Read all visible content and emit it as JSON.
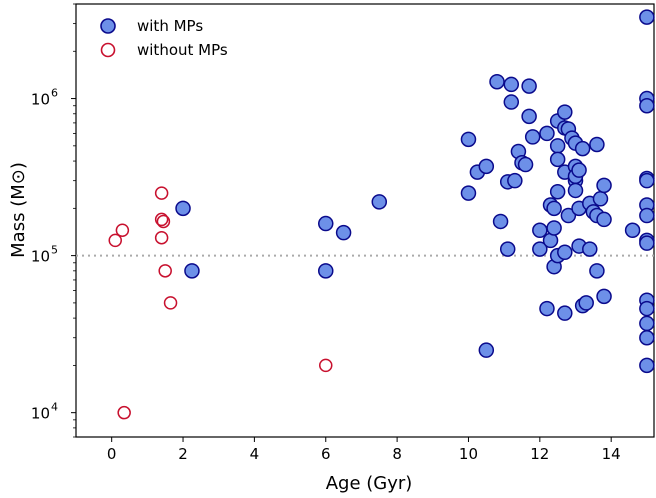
{
  "chart_data": {
    "type": "scatter",
    "xlabel": "Age (Gyr)",
    "ylabel": "Mass (M⊙)",
    "xlim": [
      -1,
      15.2
    ],
    "ylim": [
      7000,
      4000000
    ],
    "y_scale": "log",
    "x_ticks": [
      0,
      2,
      4,
      6,
      8,
      10,
      12,
      14
    ],
    "x_tick_labels": [
      "0",
      "2",
      "4",
      "6",
      "8",
      "10",
      "12",
      "14"
    ],
    "y_ticks": [
      10000,
      100000,
      1000000
    ],
    "y_tick_labels": [
      {
        "base": "10",
        "exp": "4"
      },
      {
        "base": "10",
        "exp": "5"
      },
      {
        "base": "10",
        "exp": "6"
      }
    ],
    "reference_line": {
      "y": 100000,
      "style": "dotted",
      "color": "#aaaaaa"
    },
    "legend_position": "top-left",
    "series": [
      {
        "name": "with MPs",
        "marker": "filled-circle",
        "fill": "#6d90e8",
        "edge": "#0a0a8c",
        "points": [
          [
            2.0,
            200000
          ],
          [
            2.25,
            80000
          ],
          [
            6.0,
            160000
          ],
          [
            6.0,
            80000
          ],
          [
            6.5,
            140000
          ],
          [
            7.5,
            220000
          ],
          [
            10.0,
            550000
          ],
          [
            10.0,
            250000
          ],
          [
            10.5,
            25000
          ],
          [
            10.25,
            340000
          ],
          [
            10.5,
            370000
          ],
          [
            10.8,
            1280000
          ],
          [
            11.2,
            1230000
          ],
          [
            11.2,
            950000
          ],
          [
            10.9,
            165000
          ],
          [
            11.1,
            110000
          ],
          [
            11.1,
            295000
          ],
          [
            11.3,
            300000
          ],
          [
            11.4,
            460000
          ],
          [
            11.5,
            390000
          ],
          [
            11.6,
            380000
          ],
          [
            11.7,
            1200000
          ],
          [
            11.7,
            770000
          ],
          [
            11.8,
            570000
          ],
          [
            12.0,
            145000
          ],
          [
            12.0,
            110000
          ],
          [
            12.2,
            600000
          ],
          [
            12.2,
            46000
          ],
          [
            12.3,
            210000
          ],
          [
            12.3,
            125000
          ],
          [
            12.4,
            200000
          ],
          [
            12.4,
            150000
          ],
          [
            12.4,
            85000
          ],
          [
            12.5,
            720000
          ],
          [
            12.5,
            500000
          ],
          [
            12.5,
            410000
          ],
          [
            12.5,
            255000
          ],
          [
            12.5,
            100000
          ],
          [
            12.7,
            820000
          ],
          [
            12.7,
            650000
          ],
          [
            12.7,
            340000
          ],
          [
            12.7,
            105000
          ],
          [
            12.7,
            43000
          ],
          [
            12.8,
            640000
          ],
          [
            12.8,
            180000
          ],
          [
            12.9,
            560000
          ],
          [
            13.0,
            520000
          ],
          [
            13.0,
            370000
          ],
          [
            13.0,
            300000
          ],
          [
            13.0,
            260000
          ],
          [
            13.0,
            320000
          ],
          [
            13.1,
            350000
          ],
          [
            13.1,
            200000
          ],
          [
            13.1,
            115000
          ],
          [
            13.2,
            480000
          ],
          [
            13.2,
            48000
          ],
          [
            13.3,
            50000
          ],
          [
            13.4,
            215000
          ],
          [
            13.4,
            110000
          ],
          [
            13.5,
            190000
          ],
          [
            13.6,
            510000
          ],
          [
            13.6,
            180000
          ],
          [
            13.6,
            80000
          ],
          [
            13.7,
            230000
          ],
          [
            13.8,
            280000
          ],
          [
            13.8,
            170000
          ],
          [
            13.8,
            55000
          ],
          [
            14.6,
            145000
          ],
          [
            15.0,
            3300000
          ],
          [
            15.0,
            1000000
          ],
          [
            15.0,
            900000
          ],
          [
            15.0,
            310000
          ],
          [
            15.0,
            300000
          ],
          [
            15.0,
            210000
          ],
          [
            15.0,
            180000
          ],
          [
            15.0,
            125000
          ],
          [
            15.0,
            120000
          ],
          [
            15.0,
            52000
          ],
          [
            15.0,
            46000
          ],
          [
            15.0,
            37000
          ],
          [
            15.0,
            30000
          ],
          [
            15.0,
            20000
          ]
        ]
      },
      {
        "name": "without MPs",
        "marker": "open-circle",
        "fill": "none",
        "edge": "#c8102e",
        "points": [
          [
            0.1,
            125000
          ],
          [
            0.3,
            145000
          ],
          [
            0.35,
            10000
          ],
          [
            1.4,
            250000
          ],
          [
            1.4,
            170000
          ],
          [
            1.45,
            165000
          ],
          [
            1.4,
            130000
          ],
          [
            1.5,
            80000
          ],
          [
            1.65,
            50000
          ],
          [
            6.0,
            20000
          ]
        ]
      }
    ]
  }
}
